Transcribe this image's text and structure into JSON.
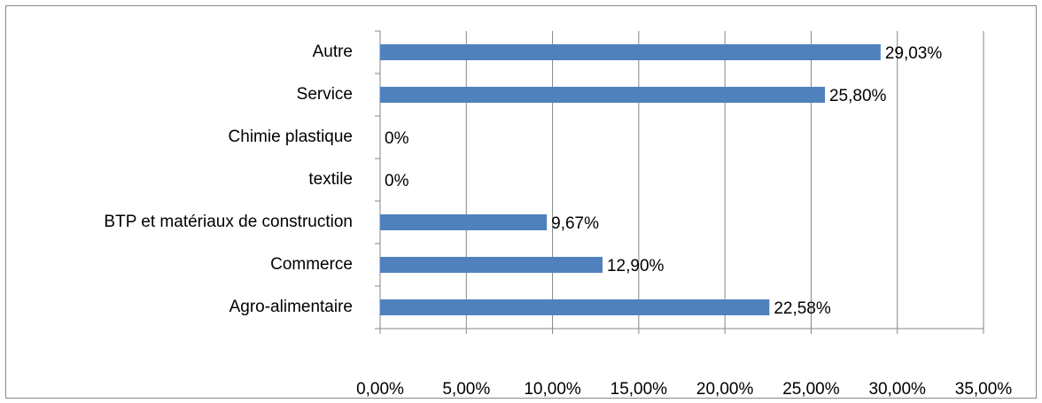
{
  "chart_data": {
    "type": "bar",
    "orientation": "horizontal",
    "categories": [
      "Autre",
      "Service",
      "Chimie plastique",
      "textile",
      "BTP et matériaux de construction",
      "Commerce",
      "Agro-alimentaire"
    ],
    "values": [
      29.03,
      25.8,
      0,
      0,
      9.67,
      12.9,
      22.58
    ],
    "value_labels": [
      "29,03%",
      "25,80%",
      "0%",
      "0%",
      "9,67%",
      "12,90%",
      "22,58%"
    ],
    "color": "#4f81bd",
    "xlim": [
      0,
      35
    ],
    "xticks": [
      {
        "value": 0,
        "label": "0,00%"
      },
      {
        "value": 5,
        "label": "5,00%"
      },
      {
        "value": 10,
        "label": "10,00%"
      },
      {
        "value": 15,
        "label": "15,00%"
      },
      {
        "value": 20,
        "label": "20,00%"
      },
      {
        "value": 25,
        "label": "25,00%"
      },
      {
        "value": 30,
        "label": "30,00%"
      },
      {
        "value": 35,
        "label": "35,00%"
      }
    ],
    "grid": true
  }
}
